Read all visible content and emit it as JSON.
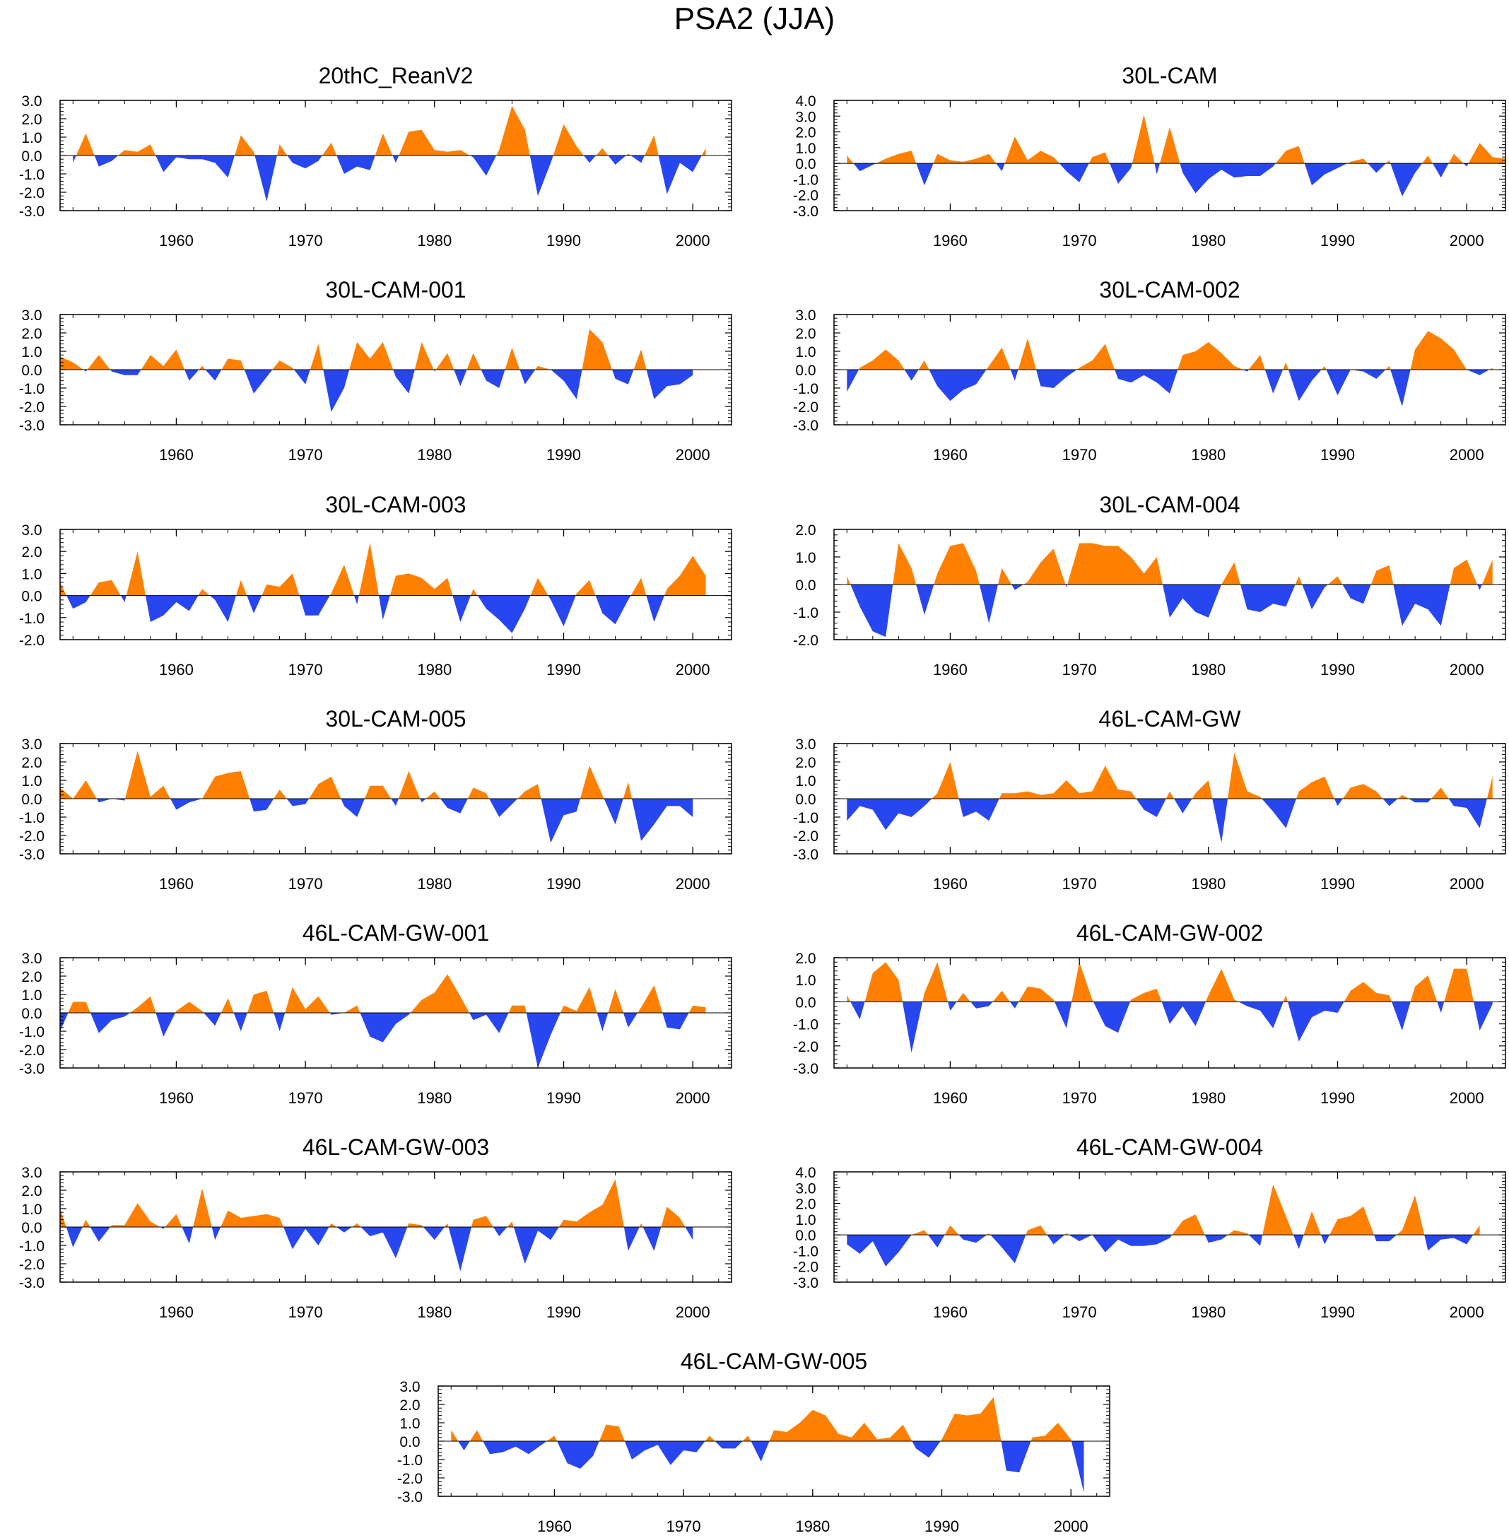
{
  "title": "PSA2 (JJA)",
  "colors": {
    "positive": "#ff8000",
    "negative": "#2846ef",
    "axis": "#000000"
  },
  "x_axis": {
    "range": [
      1951,
      2003
    ],
    "ticks": [
      1960,
      1970,
      1980,
      1990,
      2000
    ],
    "tick_labels": [
      "1960",
      "1970",
      "1980",
      "1990",
      "2000"
    ]
  },
  "chart_data": [
    {
      "type": "area",
      "title": "20thC_ReanV2",
      "ylim": [
        -3,
        3
      ],
      "ytick_labels": [
        "3.0",
        "2.0",
        "1.0",
        "0.0",
        "-1.0",
        "-2.0",
        "-3.0"
      ],
      "x_start": 1952,
      "values": [
        -0.4,
        1.2,
        -0.6,
        -0.3,
        0.3,
        0.2,
        0.6,
        -0.9,
        -0.1,
        -0.2,
        -0.2,
        -0.4,
        -1.2,
        1.1,
        0.2,
        -2.5,
        0.6,
        -0.4,
        -0.7,
        -0.3,
        0.7,
        -1.0,
        -0.6,
        -0.8,
        1.2,
        -0.4,
        1.3,
        1.4,
        0.3,
        0.2,
        0.3,
        -0.1,
        -1.1,
        0.3,
        2.7,
        1.4,
        -2.2,
        -0.4,
        1.7,
        0.5,
        -0.4,
        0.4,
        -0.5,
        0.1,
        -0.4,
        1.1,
        -2.1,
        -0.4,
        -0.9,
        0.4
      ]
    },
    {
      "type": "area",
      "title": "30L-CAM",
      "ylim": [
        -3,
        4
      ],
      "ytick_labels": [
        "4.0",
        "3.0",
        "2.0",
        "1.0",
        "0.0",
        "-1.0",
        "-2.0",
        "-3.0"
      ],
      "x_start": 1952,
      "values": [
        0.5,
        -0.5,
        -0.1,
        0.3,
        0.6,
        0.8,
        -1.4,
        0.6,
        0.2,
        0.1,
        0.3,
        0.6,
        -0.5,
        1.7,
        0.2,
        0.8,
        0.4,
        -0.5,
        -1.2,
        0.4,
        0.7,
        -1.3,
        -0.3,
        3.1,
        -0.7,
        2.3,
        -0.6,
        -1.9,
        -1.0,
        -0.4,
        -0.9,
        -0.8,
        -0.8,
        -0.2,
        0.8,
        1.1,
        -1.4,
        -0.7,
        -0.3,
        0.1,
        0.3,
        -0.6,
        0.2,
        -2.1,
        -0.6,
        0.5,
        -0.9,
        0.6,
        -0.2,
        1.3,
        0.4,
        0.3
      ]
    },
    {
      "type": "area",
      "title": "30L-CAM-001",
      "ylim": [
        -3,
        3
      ],
      "ytick_labels": [
        "3.0",
        "2.0",
        "1.0",
        "0.0",
        "-1.0",
        "-2.0",
        "-3.0"
      ],
      "x_start": 1951,
      "values": [
        0.7,
        0.4,
        -0.1,
        0.8,
        -0.1,
        -0.3,
        -0.3,
        0.8,
        0.2,
        1.1,
        -0.6,
        0.2,
        -0.6,
        0.6,
        0.5,
        -1.3,
        -0.4,
        0.5,
        0.1,
        -0.8,
        1.4,
        -2.3,
        -1.0,
        1.5,
        0.6,
        1.5,
        -0.4,
        -1.3,
        1.5,
        -0.1,
        0.9,
        -0.9,
        0.9,
        -0.6,
        -1.0,
        1.2,
        -0.8,
        0.2,
        0.0,
        -0.6,
        -1.6,
        2.2,
        1.5,
        -0.5,
        -0.8,
        1.1,
        -1.6,
        -0.9,
        -0.8,
        -0.3
      ]
    },
    {
      "type": "area",
      "title": "30L-CAM-002",
      "ylim": [
        -3,
        3
      ],
      "ytick_labels": [
        "3.0",
        "2.0",
        "1.0",
        "0.0",
        "-1.0",
        "-2.0",
        "-3.0"
      ],
      "x_start": 1952,
      "values": [
        -1.2,
        0.1,
        0.5,
        1.1,
        0.5,
        -0.6,
        0.5,
        -0.9,
        -1.7,
        -1.1,
        -0.8,
        0.2,
        1.2,
        -0.6,
        1.7,
        -0.9,
        -1.0,
        -0.4,
        0.1,
        0.5,
        1.4,
        -0.5,
        -0.7,
        -0.3,
        -0.7,
        -1.3,
        0.8,
        1.0,
        1.5,
        0.9,
        0.2,
        -0.1,
        0.8,
        -1.3,
        0.4,
        -1.7,
        -0.6,
        0.2,
        -1.4,
        0.0,
        -0.1,
        -0.5,
        0.2,
        -2.0,
        1.1,
        2.1,
        1.7,
        1.1,
        0.0,
        -0.3,
        0.1
      ]
    },
    {
      "type": "area",
      "title": "30L-CAM-003",
      "ylim": [
        -2,
        3
      ],
      "ytick_labels": [
        "3.0",
        "2.0",
        "1.0",
        "0.0",
        "-1.0",
        "-2.0"
      ],
      "x_start": 1951,
      "values": [
        0.6,
        -0.6,
        -0.3,
        0.6,
        0.7,
        -0.3,
        2.0,
        -1.2,
        -0.9,
        -0.3,
        -0.7,
        0.3,
        -0.2,
        -1.2,
        0.7,
        -0.8,
        0.5,
        0.4,
        1.0,
        -0.9,
        -0.9,
        0.1,
        1.4,
        -0.4,
        2.4,
        -1.1,
        0.9,
        1.0,
        0.8,
        0.3,
        0.8,
        -1.2,
        0.3,
        -0.6,
        -1.1,
        -1.7,
        -0.6,
        0.8,
        -0.2,
        -1.4,
        0.1,
        0.7,
        -0.8,
        -1.3,
        -0.2,
        0.8,
        -1.2,
        0.3,
        0.9,
        1.8,
        0.9
      ]
    },
    {
      "type": "area",
      "title": "30L-CAM-004",
      "ylim": [
        -2,
        2
      ],
      "ytick_labels": [
        "2.0",
        "1.0",
        "0.0",
        "-1.0",
        "-2.0"
      ],
      "x_start": 1952,
      "values": [
        0.3,
        -0.8,
        -1.7,
        -1.9,
        1.5,
        0.6,
        -1.1,
        0.4,
        1.4,
        1.5,
        0.5,
        -1.4,
        0.6,
        -0.2,
        0.1,
        0.8,
        1.3,
        -0.1,
        1.5,
        1.5,
        1.4,
        1.4,
        1.0,
        0.4,
        1.0,
        -1.2,
        -0.5,
        -1.0,
        -1.2,
        0.0,
        0.8,
        -0.9,
        -1.0,
        -0.7,
        -0.8,
        0.3,
        -0.9,
        -0.1,
        0.3,
        -0.5,
        -0.7,
        0.5,
        0.7,
        -1.5,
        -0.7,
        -0.9,
        -1.5,
        0.6,
        0.9,
        -0.2,
        0.9
      ]
    },
    {
      "type": "area",
      "title": "30L-CAM-005",
      "ylim": [
        -3,
        3
      ],
      "ytick_labels": [
        "3.0",
        "2.0",
        "1.0",
        "0.0",
        "-1.0",
        "-2.0",
        "-3.0"
      ],
      "x_start": 1951,
      "values": [
        0.6,
        0.0,
        1.0,
        -0.2,
        0.0,
        -0.1,
        2.6,
        0.1,
        0.7,
        -0.6,
        -0.2,
        0.0,
        1.2,
        1.4,
        1.5,
        -0.7,
        -0.6,
        0.5,
        -0.4,
        -0.3,
        0.8,
        1.2,
        -0.4,
        -1.0,
        0.7,
        0.7,
        -0.4,
        1.5,
        -0.2,
        0.4,
        -0.5,
        -0.8,
        0.6,
        0.3,
        -1.0,
        -0.3,
        0.4,
        0.8,
        -2.4,
        -0.9,
        -0.7,
        1.8,
        0.2,
        -1.4,
        0.9,
        -2.3,
        -1.4,
        -0.4,
        -0.4,
        -1.0
      ]
    },
    {
      "type": "area",
      "title": "46L-CAM-GW",
      "ylim": [
        -3,
        3
      ],
      "ytick_labels": [
        "3.0",
        "2.0",
        "1.0",
        "0.0",
        "-1.0",
        "-2.0",
        "-3.0"
      ],
      "x_start": 1952,
      "values": [
        -1.2,
        -0.4,
        -0.6,
        -1.7,
        -0.8,
        -1.0,
        -0.4,
        0.3,
        2.0,
        -1.0,
        -0.7,
        -1.2,
        0.3,
        0.3,
        0.4,
        0.2,
        0.3,
        1.0,
        0.3,
        0.4,
        1.8,
        0.5,
        0.4,
        -0.6,
        -1.0,
        0.4,
        -0.8,
        0.3,
        1.0,
        -2.4,
        2.5,
        0.4,
        0.1,
        -0.7,
        -1.6,
        0.4,
        0.9,
        1.2,
        -0.4,
        0.6,
        0.8,
        0.4,
        -0.4,
        0.2,
        -0.2,
        -0.2,
        0.6,
        -0.4,
        -0.5,
        -1.6,
        1.2
      ]
    },
    {
      "type": "area",
      "title": "46L-CAM-GW-001",
      "ylim": [
        -3,
        3
      ],
      "ytick_labels": [
        "3.0",
        "2.0",
        "1.0",
        "0.0",
        "-1.0",
        "-2.0",
        "-3.0"
      ],
      "x_start": 1951,
      "values": [
        -1.0,
        0.6,
        0.6,
        -1.1,
        -0.4,
        -0.2,
        0.3,
        0.9,
        -1.3,
        0.1,
        0.6,
        0.1,
        -0.7,
        0.8,
        -1.0,
        1.0,
        1.2,
        -1.0,
        1.4,
        0.2,
        0.9,
        -0.1,
        0.0,
        0.4,
        -1.3,
        -1.6,
        -0.6,
        -0.1,
        0.7,
        1.1,
        2.1,
        0.9,
        -0.4,
        -0.1,
        -1.1,
        0.4,
        0.4,
        -3.0,
        -1.2,
        0.4,
        0.1,
        1.4,
        -1.0,
        1.3,
        -0.8,
        0.3,
        1.5,
        -0.8,
        -0.9,
        0.4,
        0.3
      ]
    },
    {
      "type": "area",
      "title": "46L-CAM-GW-002",
      "ylim": [
        -3,
        2
      ],
      "ytick_labels": [
        "2.0",
        "1.0",
        "0.0",
        "-1.0",
        "-2.0",
        "-3.0"
      ],
      "x_start": 1952,
      "values": [
        0.3,
        -0.8,
        1.3,
        1.8,
        1.0,
        -2.3,
        0.4,
        1.8,
        -0.4,
        0.4,
        -0.3,
        -0.2,
        0.5,
        -0.3,
        0.7,
        0.6,
        0.1,
        -1.2,
        1.8,
        0.1,
        -1.1,
        -1.4,
        0.1,
        0.4,
        0.6,
        -1.0,
        -0.2,
        -1.1,
        0.3,
        1.5,
        0.1,
        -0.2,
        -0.4,
        -1.2,
        0.3,
        -1.8,
        -0.7,
        -0.4,
        -0.5,
        0.5,
        0.9,
        0.4,
        0.3,
        -1.3,
        0.7,
        1.2,
        -0.5,
        1.5,
        1.5,
        -1.3,
        -0.1
      ]
    },
    {
      "type": "area",
      "title": "46L-CAM-GW-003",
      "ylim": [
        -3,
        3
      ],
      "ytick_labels": [
        "3.0",
        "2.0",
        "1.0",
        "0.0",
        "-1.0",
        "-2.0",
        "-3.0"
      ],
      "x_start": 1951,
      "values": [
        1.0,
        -1.1,
        0.4,
        -0.8,
        0.1,
        0.1,
        1.3,
        0.3,
        -0.1,
        0.7,
        -0.9,
        2.1,
        -0.7,
        0.9,
        0.5,
        0.6,
        0.7,
        0.5,
        -1.2,
        -0.1,
        -1.0,
        0.2,
        -0.3,
        0.2,
        -0.5,
        -0.3,
        -1.7,
        0.2,
        0.1,
        -0.7,
        0.2,
        -2.4,
        0.4,
        0.6,
        -0.5,
        0.3,
        -2.0,
        -0.2,
        -0.7,
        0.4,
        0.3,
        0.8,
        1.2,
        2.6,
        -1.3,
        0.2,
        -1.3,
        1.1,
        0.5,
        -0.7
      ]
    },
    {
      "type": "area",
      "title": "46L-CAM-GW-004",
      "ylim": [
        -3,
        4
      ],
      "ytick_labels": [
        "4.0",
        "3.0",
        "2.0",
        "1.0",
        "0.0",
        "-1.0",
        "-2.0",
        "-3.0"
      ],
      "x_start": 1952,
      "values": [
        -0.6,
        -1.2,
        -0.4,
        -2.0,
        -1.1,
        0.0,
        0.3,
        -0.8,
        0.6,
        -0.3,
        -0.5,
        0.1,
        -0.8,
        -1.8,
        0.3,
        0.6,
        -0.6,
        0.1,
        -0.4,
        0.0,
        -1.1,
        -0.3,
        -0.7,
        -0.7,
        -0.6,
        -0.2,
        0.9,
        1.3,
        -0.5,
        -0.3,
        0.3,
        0.1,
        -0.7,
        3.2,
        1.2,
        -0.9,
        1.5,
        -0.6,
        1.0,
        1.2,
        1.8,
        -0.4,
        -0.4,
        0.3,
        2.5,
        -1.0,
        -0.3,
        -0.2,
        -0.6,
        0.6
      ]
    },
    {
      "type": "area",
      "title": "46L-CAM-GW-005",
      "ylim": [
        -3,
        3
      ],
      "ytick_labels": [
        "3.0",
        "2.0",
        "1.0",
        "0.0",
        "-1.0",
        "-2.0",
        "-3.0"
      ],
      "x_start": 1952,
      "values": [
        0.6,
        -0.5,
        0.6,
        -0.7,
        -0.6,
        -0.3,
        -0.7,
        -0.2,
        0.3,
        -1.2,
        -1.5,
        -0.8,
        0.9,
        0.8,
        -1.0,
        -0.5,
        -0.2,
        -1.3,
        -0.5,
        -0.6,
        0.3,
        -0.4,
        -0.4,
        0.3,
        -1.1,
        0.6,
        0.5,
        1.0,
        1.7,
        1.4,
        0.4,
        0.2,
        1.0,
        0.1,
        0.2,
        0.9,
        -0.4,
        -0.9,
        0.1,
        1.5,
        1.4,
        1.5,
        2.4,
        -1.6,
        -1.7,
        0.2,
        0.3,
        1.0,
        0.1,
        -2.8
      ]
    }
  ]
}
